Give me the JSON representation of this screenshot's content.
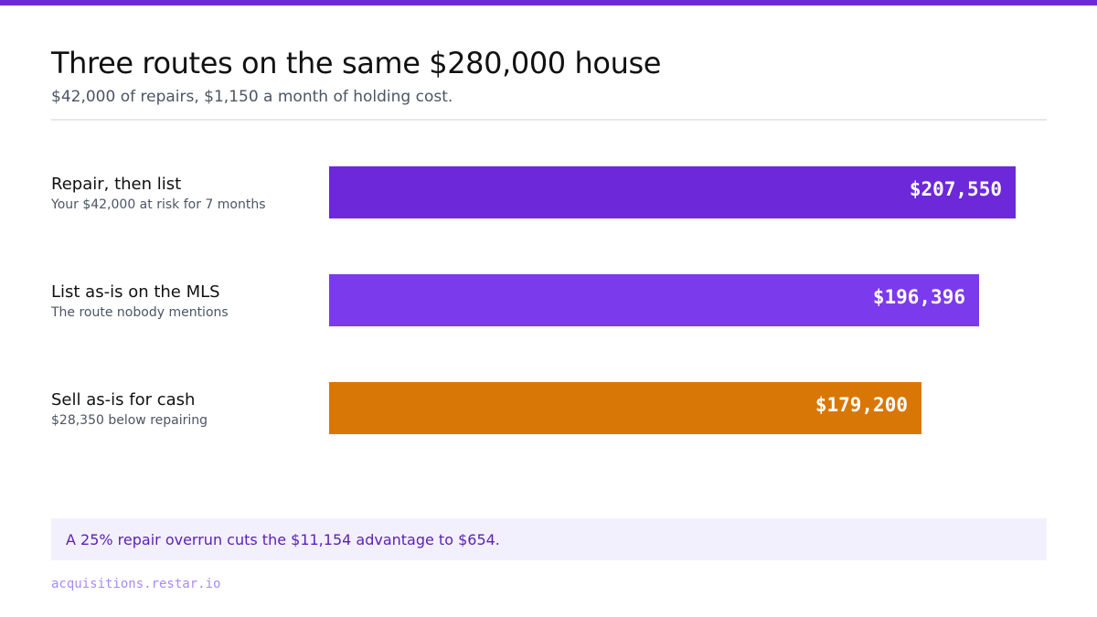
{
  "header": {
    "title": "Three routes on the same $280,000 house",
    "subtitle": "$42,000 of repairs, $1,150 a month of holding cost."
  },
  "chart_data": {
    "type": "bar",
    "orientation": "horizontal",
    "xlim": [
      0,
      228000
    ],
    "categories": [
      "Repair, then list",
      "List as-is on the MLS",
      "Sell as-is for cash"
    ],
    "notes": [
      "Your $42,000 at risk for 7 months",
      "The route nobody mentions",
      "$28,350 below repairing"
    ],
    "values": [
      207550,
      196396,
      179200
    ],
    "value_labels": [
      "$207,550",
      "$196,396",
      "$179,200"
    ],
    "colors": [
      "#6d28d9",
      "#7c3aed",
      "#d97706"
    ],
    "grid": false,
    "legend": "none"
  },
  "callout": {
    "text": "A 25% repair overrun cuts the $11,154 advantage to $654."
  },
  "footer": {
    "site": "acquisitions.restar.io"
  },
  "colors": {
    "accent": "#6d28d9",
    "cash": "#d97706",
    "callout_bg": "#f3f0fd"
  }
}
